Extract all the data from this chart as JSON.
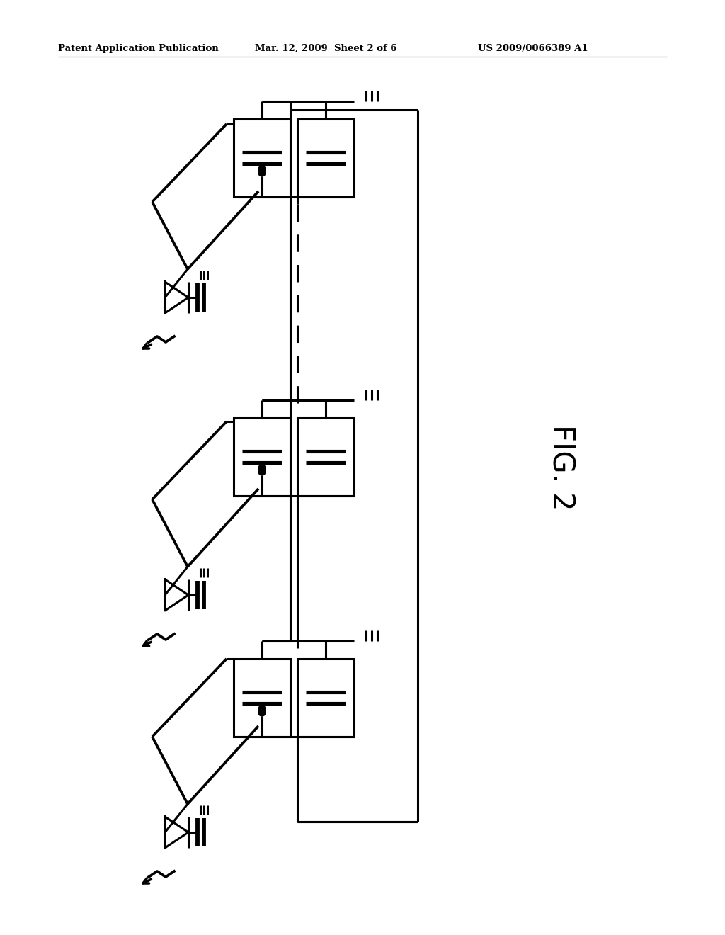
{
  "title_left": "Patent Application Publication",
  "title_mid": "Mar. 12, 2009  Sheet 2 of 6",
  "title_right": "US 2009/0066389 A1",
  "fig_label": "FIG. 2",
  "background": "#ffffff",
  "line_color": "#000000",
  "line_width": 2.2
}
